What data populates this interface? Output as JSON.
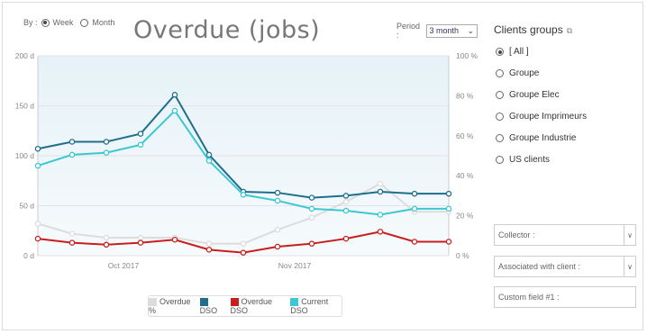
{
  "header": {
    "by_label": "By :",
    "week_label": "Week",
    "month_label": "Month",
    "title": "Overdue (jobs)",
    "period_label": "Period :",
    "period_value": "3 month"
  },
  "panel": {
    "title": "Clients groups",
    "groups": [
      "[ All ]",
      "Groupe",
      "Groupe Elec",
      "Groupe Imprimeurs",
      "Groupe Industrie",
      "US clients"
    ],
    "selected_index": 0,
    "filters": [
      {
        "label": "Collector :",
        "has_dropdown": true
      },
      {
        "label": "Associated with client :",
        "has_dropdown": true
      },
      {
        "label": "Custom field #1 :",
        "has_dropdown": false
      }
    ]
  },
  "chart_data": {
    "type": "line",
    "x": [
      0,
      1,
      2,
      3,
      4,
      5,
      6,
      7,
      8,
      9,
      10,
      11,
      12
    ],
    "x_tick_labels": [
      {
        "at": 2.5,
        "label": "Oct 2017"
      },
      {
        "at": 7.5,
        "label": "Nov 2017"
      }
    ],
    "y_left": {
      "ticks": [
        0,
        50,
        100,
        150,
        200
      ],
      "tick_labels": [
        "0 d",
        "50 d",
        "100 d",
        "150 d",
        "200 d"
      ],
      "range": [
        0,
        200
      ]
    },
    "y_right": {
      "ticks": [
        0,
        20,
        40,
        60,
        80,
        100
      ],
      "tick_labels": [
        "0 %",
        "20 %",
        "40 %",
        "60 %",
        "80 %",
        "100 %"
      ],
      "range": [
        0,
        100
      ]
    },
    "grid": true,
    "legend_position": "bottom",
    "series": [
      {
        "name": "Overdue %",
        "axis": "right",
        "color": "#dcdcdc",
        "values": [
          16,
          11,
          9,
          9,
          9,
          6,
          6,
          13,
          19,
          27,
          36,
          22,
          22
        ]
      },
      {
        "name": "DSO",
        "axis": "left",
        "color": "#1f6e8c",
        "values": [
          107,
          114,
          114,
          122,
          161,
          101,
          64,
          63,
          58,
          60,
          64,
          62,
          62
        ]
      },
      {
        "name": "Overdue DSO",
        "axis": "left",
        "color": "#c81e1e",
        "values": [
          17,
          13,
          11,
          13,
          16,
          6,
          3,
          9,
          12,
          17,
          24,
          14,
          14
        ]
      },
      {
        "name": "Current DSO",
        "axis": "left",
        "color": "#3cc8d2",
        "values": [
          90,
          101,
          103,
          111,
          145,
          95,
          61,
          55,
          47,
          45,
          41,
          47,
          47
        ]
      }
    ]
  }
}
